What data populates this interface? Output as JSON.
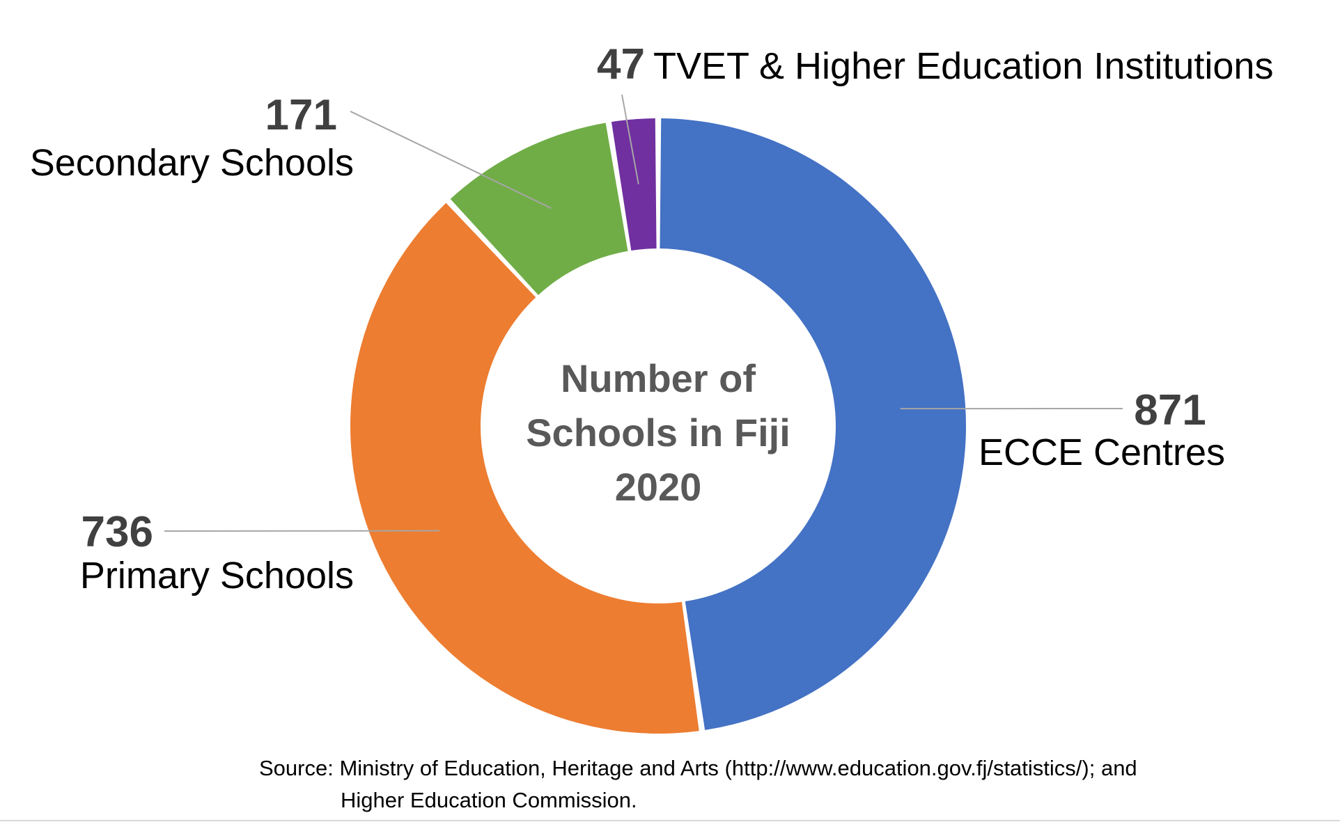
{
  "chart_data": {
    "type": "pie",
    "variant": "donut",
    "title_lines": [
      "Number of",
      "Schools in Fiji",
      "2020"
    ],
    "slices": [
      {
        "label": "ECCE Centres",
        "value": 871,
        "color": "#4472C4"
      },
      {
        "label": "Primary Schools",
        "value": 736,
        "color": "#ED7D31"
      },
      {
        "label": "Secondary Schools",
        "value": 171,
        "color": "#70AD47"
      },
      {
        "label": "TVET & Higher Education Institutions",
        "value": 47,
        "color": "#7030A0"
      }
    ]
  },
  "source_lines": [
    "Source: Ministry of Education, Heritage and Arts (http://www.education.gov.fj/statistics/); and",
    "Higher Education Commission."
  ]
}
